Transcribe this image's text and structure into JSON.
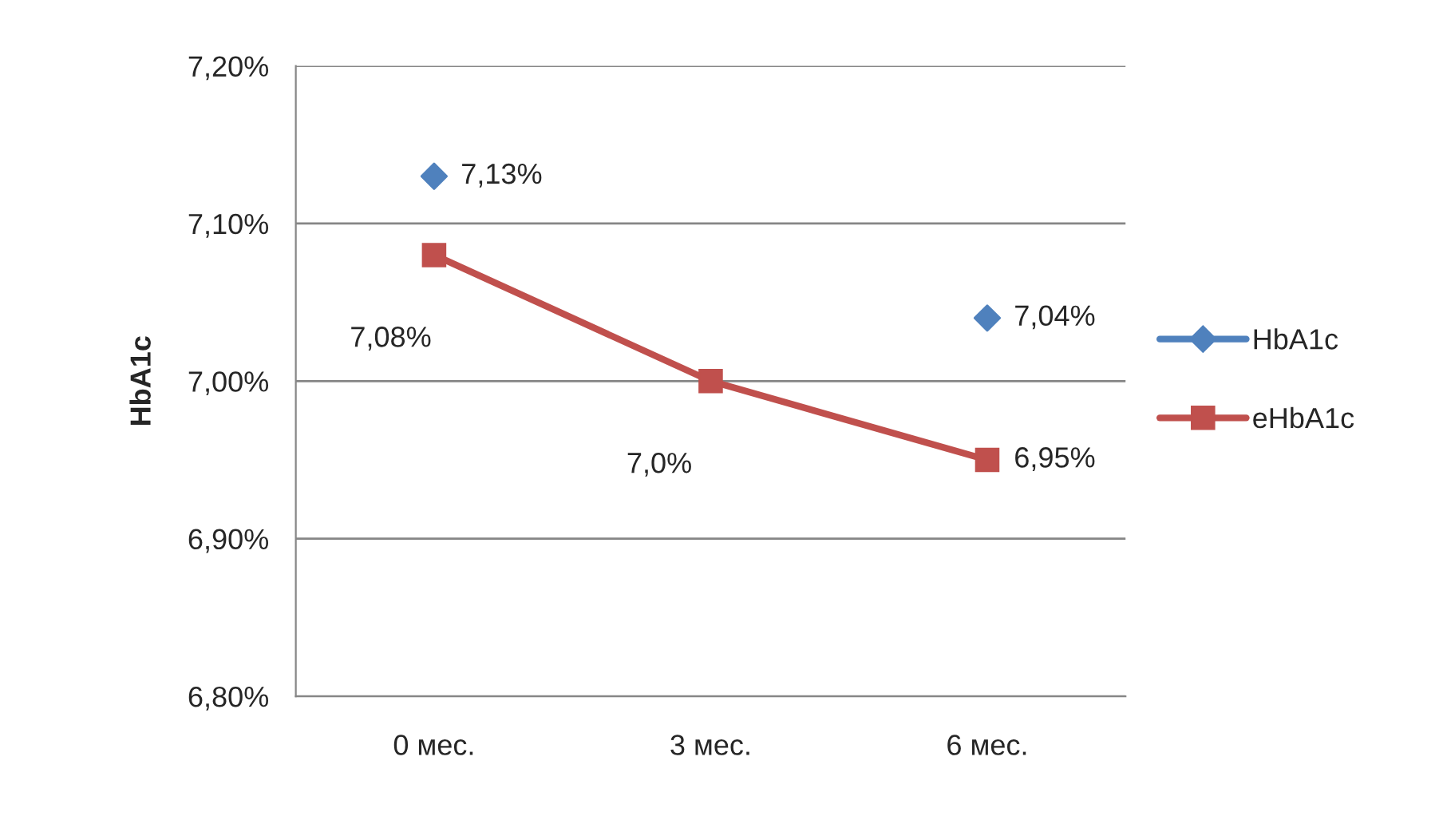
{
  "chart_data": {
    "type": "line",
    "ylabel": "HbA1c",
    "categories": [
      "0 мес.",
      "3 мес.",
      "6 мес."
    ],
    "series": [
      {
        "name": "HbA1c",
        "type": "scatter",
        "color": "#4f81bd",
        "marker": "diamond",
        "values": [
          7.13,
          null,
          7.04
        ],
        "value_labels": [
          "7,13%",
          null,
          "7,04%"
        ]
      },
      {
        "name": "eHbA1c",
        "color": "#c0504d",
        "marker": "square",
        "values": [
          7.08,
          7.0,
          6.95
        ],
        "value_labels": [
          "7,08%",
          "7,0%",
          "6,95%"
        ]
      }
    ],
    "ylim": [
      6.8,
      7.2
    ],
    "yticks": [
      {
        "value": 6.8,
        "label": "6,80%"
      },
      {
        "value": 6.9,
        "label": "6,90%"
      },
      {
        "value": 7.0,
        "label": "7,00%"
      },
      {
        "value": 7.1,
        "label": "7,10%"
      },
      {
        "value": 7.2,
        "label": "7,20%"
      }
    ],
    "grid": "y",
    "legend": "right",
    "line_style": "solid"
  }
}
